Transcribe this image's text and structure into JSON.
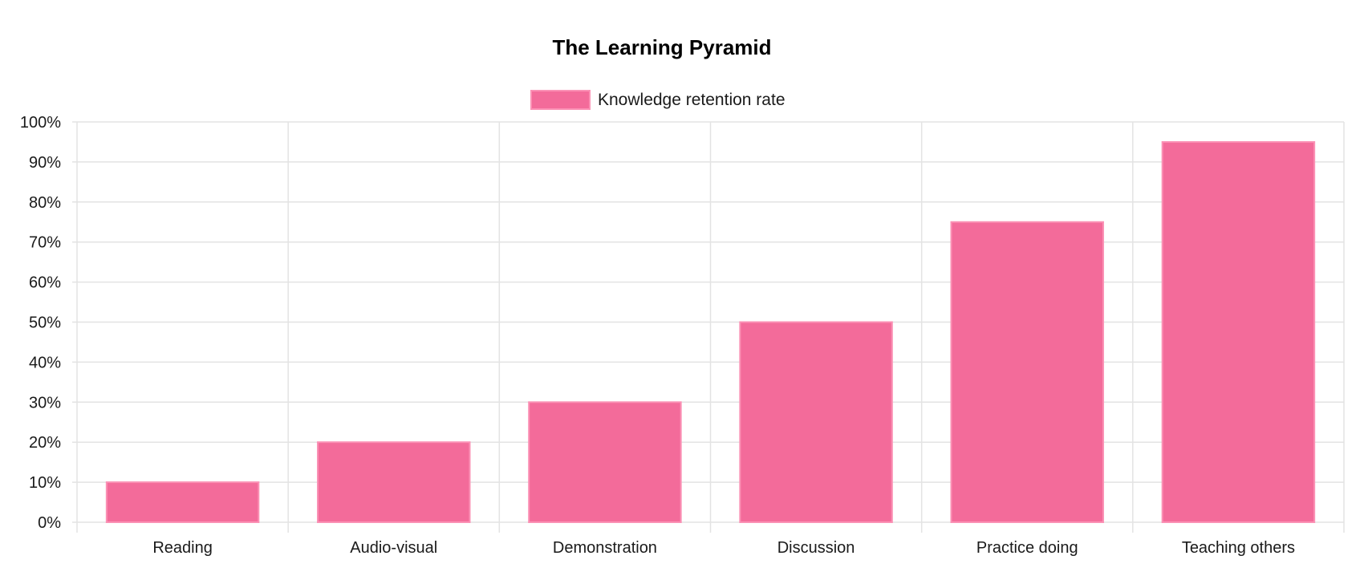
{
  "chart_data": {
    "type": "bar",
    "title": "The Learning Pyramid",
    "categories": [
      "Reading",
      "Audio-visual",
      "Demonstration",
      "Discussion",
      "Practice doing",
      "Teaching others"
    ],
    "series": [
      {
        "name": "Knowledge retention rate",
        "values": [
          10,
          20,
          30,
          50,
          75,
          95
        ]
      }
    ],
    "ylim": [
      0,
      100
    ],
    "ytick_step": 10,
    "ytick_labels": [
      "0%",
      "10%",
      "20%",
      "30%",
      "40%",
      "50%",
      "60%",
      "70%",
      "80%",
      "90%",
      "100%"
    ],
    "grid": true,
    "legend_position": "top",
    "colors": {
      "bar_fill": "#f36b9a",
      "bar_border": "#fb91b5",
      "grid": "#e3e3e3",
      "text": "#1a1a1a",
      "title": "#000000"
    }
  }
}
